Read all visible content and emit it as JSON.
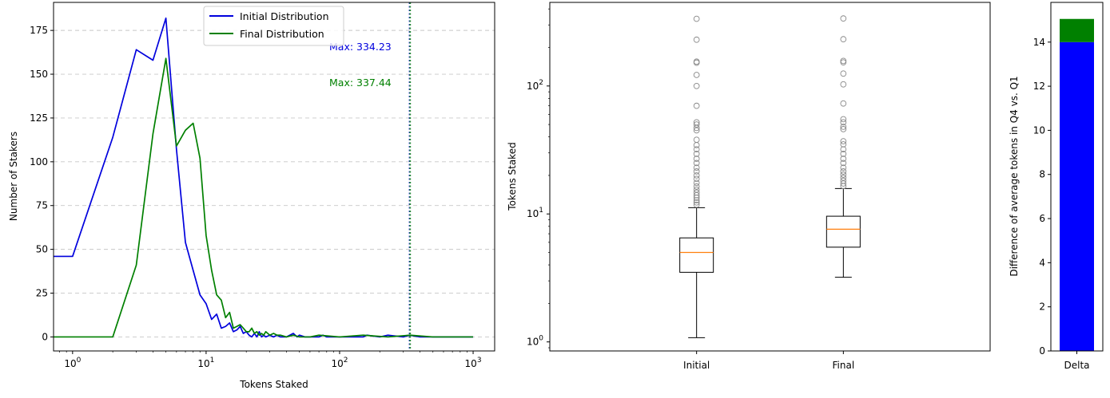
{
  "chart_data": [
    {
      "type": "line",
      "title": "",
      "xlabel": "Tokens Staked",
      "ylabel": "Number of Stakers",
      "x_scale": "log",
      "xlim": [
        0.72,
        1450
      ],
      "ylim": [
        -8,
        191
      ],
      "x_ticks": [
        {
          "value": 1,
          "base": "10",
          "exp": "0"
        },
        {
          "value": 10,
          "base": "10",
          "exp": "1"
        },
        {
          "value": 100,
          "base": "10",
          "exp": "2"
        },
        {
          "value": 1000,
          "base": "10",
          "exp": "3"
        }
      ],
      "y_ticks": [
        {
          "value": 0,
          "label": "0"
        },
        {
          "value": 25,
          "label": "25"
        },
        {
          "value": 50,
          "label": "50"
        },
        {
          "value": 75,
          "label": "75"
        },
        {
          "value": 100,
          "label": "100"
        },
        {
          "value": 125,
          "label": "125"
        },
        {
          "value": 150,
          "label": "150"
        },
        {
          "value": 175,
          "label": "175"
        }
      ],
      "grid": "y-dashed",
      "legend_position": "top-center",
      "series": [
        {
          "name": "Initial Distribution",
          "color": "#0000dd",
          "x": [
            0.72,
            1,
            2,
            3,
            4,
            5,
            6,
            7,
            8,
            9,
            10,
            11,
            12,
            13,
            14,
            15,
            16,
            17,
            18,
            19,
            20,
            21,
            22,
            23,
            24,
            25,
            26,
            27,
            28,
            30,
            32,
            34,
            36,
            40,
            45,
            48,
            50,
            55,
            60,
            70,
            75,
            80,
            100,
            150,
            160,
            200,
            230,
            300,
            334,
            400,
            500,
            700,
            1000
          ],
          "y": [
            46,
            46,
            114,
            164,
            158,
            182,
            107,
            54,
            38,
            24,
            19,
            10,
            13,
            5,
            6,
            8,
            3,
            4,
            6,
            2,
            3,
            1,
            0,
            2,
            0,
            3,
            0,
            1,
            0,
            1,
            0,
            1,
            0,
            0,
            2,
            0,
            1,
            0,
            0,
            0,
            1,
            0,
            0,
            0,
            1,
            0,
            1,
            0,
            1,
            0,
            0,
            0,
            0
          ]
        },
        {
          "name": "Final Distribution",
          "color": "#008000",
          "x": [
            0.72,
            1,
            2,
            3,
            4,
            5,
            6,
            7,
            8,
            9,
            10,
            11,
            12,
            13,
            14,
            15,
            16,
            17,
            18,
            19,
            20,
            21,
            22,
            23,
            24,
            25,
            26,
            27,
            28,
            30,
            32,
            34,
            36,
            40,
            45,
            50,
            60,
            70,
            100,
            150,
            230,
            337,
            500,
            700,
            1000
          ],
          "y": [
            0,
            0,
            0,
            41,
            116,
            159,
            109,
            118,
            122,
            102,
            58,
            38,
            24,
            21,
            11,
            14,
            5,
            6,
            7,
            5,
            3,
            3,
            5,
            2,
            3,
            1,
            2,
            1,
            3,
            1,
            2,
            1,
            1,
            0,
            1,
            0,
            0,
            1,
            0,
            1,
            0,
            1,
            0,
            0,
            0
          ]
        }
      ],
      "vlines": [
        {
          "x": 334.23,
          "color": "#0000dd",
          "style": "dotted"
        },
        {
          "x": 337.44,
          "color": "#008000",
          "style": "dotted"
        }
      ],
      "annotations": [
        {
          "text": "Max: 334.23",
          "color": "#0000dd"
        },
        {
          "text": "Max: 337.44",
          "color": "#008000"
        }
      ]
    },
    {
      "type": "box",
      "title": "",
      "xlabel": "",
      "ylabel": "Tokens Staked",
      "y_scale": "log",
      "ylim": [
        0.85,
        450
      ],
      "categories": [
        "Initial",
        "Final"
      ],
      "y_ticks": [
        {
          "value": 1,
          "base": "10",
          "exp": "0"
        },
        {
          "value": 10,
          "base": "10",
          "exp": "1"
        },
        {
          "value": 100,
          "base": "10",
          "exp": "2"
        }
      ],
      "boxes": [
        {
          "name": "Initial",
          "whisker_low": 1.08,
          "q1": 3.5,
          "median": 5.0,
          "q3": 6.5,
          "whisker_high": 11.2,
          "outliers": [
            11.8,
            12.3,
            12.8,
            13.4,
            14.0,
            14.7,
            15.5,
            16.4,
            17.5,
            18.8,
            20.0,
            21.5,
            23.0,
            25.0,
            27.0,
            29.5,
            32.0,
            34.5,
            38.0,
            45.0,
            47.0,
            50.0,
            52.0,
            70.0,
            100.0,
            122.0,
            152.0,
            155.0,
            230.0,
            335.0
          ]
        },
        {
          "name": "Final",
          "whisker_low": 3.2,
          "q1": 5.5,
          "median": 7.6,
          "q3": 9.6,
          "whisker_high": 15.8,
          "outliers": [
            16.5,
            17.3,
            18.2,
            19.2,
            20.3,
            21.5,
            23.0,
            25.0,
            27.0,
            29.5,
            32.0,
            35.0,
            37.0,
            46.0,
            48.0,
            52.0,
            55.0,
            73.0,
            103.0,
            125.0,
            153.0,
            157.0,
            232.0,
            337.0
          ]
        }
      ],
      "colors": {
        "box": "#000000",
        "median": "#ff7f0e",
        "outlier": "#888888"
      }
    },
    {
      "type": "bar",
      "title": "",
      "xlabel": "",
      "ylabel": "Difference of average tokens in Q4 vs. Q1",
      "ylim": [
        0,
        15.8
      ],
      "categories": [
        "Delta"
      ],
      "stacked": true,
      "series": [
        {
          "color": "#0000ff",
          "values": [
            14.0
          ]
        },
        {
          "color": "#008000",
          "values": [
            1.05
          ]
        }
      ],
      "y_ticks": [
        {
          "value": 0,
          "label": "0"
        },
        {
          "value": 2,
          "label": "2"
        },
        {
          "value": 4,
          "label": "4"
        },
        {
          "value": 6,
          "label": "6"
        },
        {
          "value": 8,
          "label": "8"
        },
        {
          "value": 10,
          "label": "10"
        },
        {
          "value": 12,
          "label": "12"
        },
        {
          "value": 14,
          "label": "14"
        }
      ]
    }
  ]
}
